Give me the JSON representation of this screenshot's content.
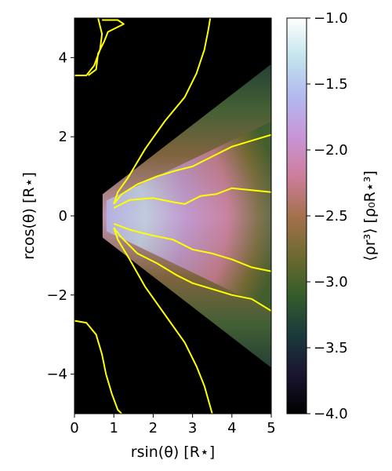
{
  "chart_data": {
    "type": "heatmap",
    "xlabel": "rsin(θ) [R⋆]",
    "ylabel": "rcos(θ) [R⋆]",
    "colorbar_label": "⟨ρr³⟩ [ρ₀R⋆³]",
    "xlim": [
      0,
      5
    ],
    "ylim": [
      -5,
      5
    ],
    "xticks": [
      0,
      1,
      2,
      3,
      4,
      5
    ],
    "xtick_labels": [
      "0",
      "1",
      "2",
      "3",
      "4",
      "5"
    ],
    "yticks": [
      -4,
      -2,
      0,
      2,
      4
    ],
    "ytick_labels": [
      "−4",
      "−2",
      "0",
      "2",
      "4"
    ],
    "colorbar": {
      "range": [
        -4.0,
        -1.0
      ],
      "ticks": [
        -4.0,
        -3.5,
        -3.0,
        -2.5,
        -2.0,
        -1.5,
        -1.0
      ],
      "tick_labels": [
        "−4.0",
        "−3.5",
        "−3.0",
        "−2.5",
        "−2.0",
        "−1.5",
        "−1.0"
      ],
      "colormap": "cubehelix",
      "stops": [
        "#000000",
        "#1a1530",
        "#1b3a3c",
        "#355d2a",
        "#6f6a2f",
        "#a5714e",
        "#cd7d9c",
        "#c795d6",
        "#b3b8f0",
        "#c2e3ec",
        "#ffffff"
      ]
    },
    "density_field": {
      "description_value_at_center": -1.6,
      "wedge_half_angle_deg": 30,
      "inner_radius": 0.9,
      "background_value": -4.0
    },
    "contour_color": "#ffff00",
    "contours": [
      {
        "name": "outer-upper",
        "points": [
          [
            0.6,
            5.0
          ],
          [
            0.7,
            4.6
          ],
          [
            0.65,
            4.2
          ],
          [
            0.5,
            3.8
          ],
          [
            0.3,
            3.55
          ],
          [
            0.0,
            3.55
          ]
        ]
      },
      {
        "name": "outer-upper-right",
        "points": [
          [
            0.7,
            4.95
          ],
          [
            1.1,
            4.95
          ],
          [
            1.25,
            4.85
          ],
          [
            0.85,
            4.65
          ],
          [
            0.75,
            4.4
          ],
          [
            0.6,
            4.1
          ],
          [
            0.55,
            3.7
          ],
          [
            0.35,
            3.55
          ]
        ]
      },
      {
        "name": "wedge-upper",
        "points": [
          [
            3.45,
            5.0
          ],
          [
            3.4,
            4.7
          ],
          [
            3.3,
            4.2
          ],
          [
            3.1,
            3.6
          ],
          [
            2.8,
            3.0
          ],
          [
            2.3,
            2.4
          ],
          [
            1.8,
            1.7
          ],
          [
            1.35,
            0.95
          ],
          [
            1.1,
            0.6
          ],
          [
            1.0,
            0.3
          ]
        ]
      },
      {
        "name": "wedge-lower",
        "points": [
          [
            1.0,
            -0.3
          ],
          [
            1.1,
            -0.6
          ],
          [
            1.4,
            -1.1
          ],
          [
            1.8,
            -1.8
          ],
          [
            2.3,
            -2.5
          ],
          [
            2.8,
            -3.2
          ],
          [
            3.1,
            -3.8
          ],
          [
            3.3,
            -4.3
          ],
          [
            3.5,
            -5.0
          ]
        ]
      },
      {
        "name": "outer-lower",
        "points": [
          [
            0.0,
            -2.65
          ],
          [
            0.3,
            -2.7
          ],
          [
            0.55,
            -3.0
          ],
          [
            0.7,
            -3.5
          ],
          [
            0.8,
            -4.0
          ],
          [
            0.95,
            -4.5
          ],
          [
            1.1,
            -4.9
          ],
          [
            1.2,
            -5.0
          ]
        ]
      },
      {
        "name": "inner-upper",
        "points": [
          [
            1.0,
            0.3
          ],
          [
            1.2,
            0.55
          ],
          [
            1.6,
            0.8
          ],
          [
            2.1,
            1.0
          ],
          [
            2.6,
            1.15
          ],
          [
            3.0,
            1.25
          ],
          [
            3.5,
            1.5
          ],
          [
            4.0,
            1.75
          ],
          [
            4.5,
            1.9
          ],
          [
            5.0,
            2.05
          ]
        ]
      },
      {
        "name": "inner-lower",
        "points": [
          [
            1.0,
            -0.3
          ],
          [
            1.2,
            -0.55
          ],
          [
            1.6,
            -0.95
          ],
          [
            2.1,
            -1.2
          ],
          [
            2.6,
            -1.5
          ],
          [
            3.0,
            -1.7
          ],
          [
            3.5,
            -1.85
          ],
          [
            4.0,
            -2.0
          ],
          [
            4.5,
            -2.1
          ],
          [
            5.0,
            -2.4
          ]
        ]
      },
      {
        "name": "core-upper",
        "points": [
          [
            1.0,
            0.2
          ],
          [
            1.4,
            0.4
          ],
          [
            2.0,
            0.45
          ],
          [
            2.5,
            0.35
          ],
          [
            2.8,
            0.3
          ],
          [
            3.2,
            0.5
          ],
          [
            3.6,
            0.55
          ],
          [
            4.0,
            0.7
          ],
          [
            4.5,
            0.65
          ],
          [
            5.0,
            0.6
          ]
        ]
      },
      {
        "name": "core-lower",
        "points": [
          [
            1.0,
            -0.2
          ],
          [
            1.4,
            -0.35
          ],
          [
            2.0,
            -0.5
          ],
          [
            2.5,
            -0.6
          ],
          [
            3.0,
            -0.85
          ],
          [
            3.5,
            -0.95
          ],
          [
            4.0,
            -1.1
          ],
          [
            4.5,
            -1.3
          ],
          [
            5.0,
            -1.4
          ]
        ]
      }
    ]
  }
}
